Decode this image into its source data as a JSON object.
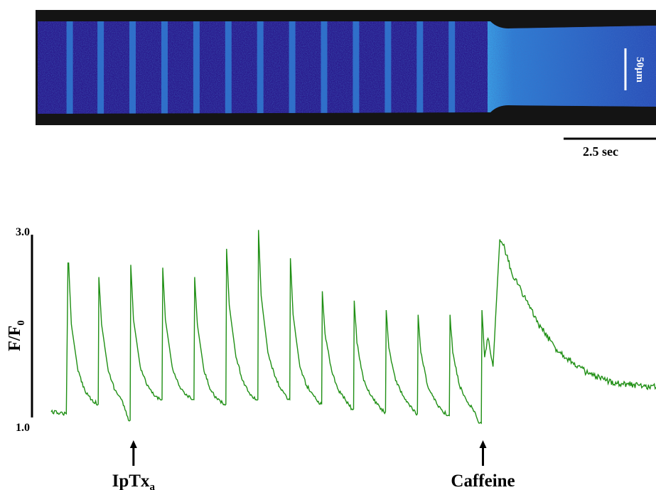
{
  "figure": {
    "linescan": {
      "spatial_scale_label": "50μm",
      "time_scale_label": "2.5 sec",
      "colors": {
        "background": "#141414",
        "cell_base": "#2a1a8c",
        "cell_bright": "#2ab8e8"
      }
    },
    "trace": {
      "y_axis_label_main": "F/F",
      "y_axis_label_sub": "0",
      "y_tick_top": "3.0",
      "y_tick_bottom": "1.0",
      "color": "#1f8f14"
    },
    "annotations": [
      {
        "main": "IpTx",
        "sub": "a",
        "time": 2.45
      },
      {
        "main": "Caffeine",
        "sub": "",
        "time": 12.85
      }
    ]
  },
  "chart_data": {
    "type": "line",
    "title": "",
    "xlabel": "",
    "ylabel": "F/F0",
    "ylim": [
      1.0,
      3.0
    ],
    "xlim": [
      0,
      18
    ],
    "time_scale_bar_seconds": 2.5,
    "series": [
      {
        "name": "",
        "color": "#1f8f14",
        "x": [
          0.0,
          0.45,
          0.5,
          0.52,
          0.6,
          0.8,
          1.0,
          1.2,
          1.4,
          1.4,
          1.42,
          1.5,
          1.7,
          1.9,
          2.1,
          2.3,
          2.35,
          2.37,
          2.45,
          2.65,
          2.85,
          3.05,
          3.25,
          3.3,
          3.32,
          3.4,
          3.6,
          3.8,
          4.0,
          4.2,
          4.25,
          4.27,
          4.35,
          4.55,
          4.75,
          4.95,
          5.15,
          5.2,
          5.22,
          5.3,
          5.5,
          5.7,
          5.9,
          6.1,
          6.15,
          6.17,
          6.25,
          6.45,
          6.65,
          6.85,
          7.05,
          7.1,
          7.12,
          7.2,
          7.4,
          7.6,
          7.8,
          8.0,
          8.05,
          8.07,
          8.15,
          8.35,
          8.55,
          8.75,
          8.95,
          9.0,
          9.02,
          9.1,
          9.3,
          9.5,
          9.7,
          9.9,
          9.95,
          9.97,
          10.05,
          10.25,
          10.45,
          10.65,
          10.85,
          10.9,
          10.92,
          11.0,
          11.2,
          11.4,
          11.6,
          11.8,
          11.85,
          11.87,
          11.95,
          12.15,
          12.35,
          12.55,
          12.75,
          12.8,
          12.82,
          12.9,
          13.0,
          13.15,
          13.35,
          13.5,
          13.7,
          14.0,
          14.5,
          15.0,
          15.5,
          16.0,
          16.5,
          17.0,
          17.5,
          18.0
        ],
        "y": [
          1.12,
          1.1,
          2.7,
          2.7,
          2.05,
          1.55,
          1.35,
          1.25,
          1.2,
          1.2,
          2.55,
          2.05,
          1.55,
          1.35,
          1.25,
          1.03,
          1.03,
          2.68,
          2.1,
          1.6,
          1.4,
          1.3,
          1.25,
          1.25,
          2.65,
          2.1,
          1.6,
          1.4,
          1.3,
          1.25,
          1.25,
          2.55,
          2.05,
          1.55,
          1.35,
          1.25,
          1.2,
          1.2,
          2.85,
          2.25,
          1.7,
          1.45,
          1.32,
          1.25,
          1.25,
          3.05,
          2.35,
          1.75,
          1.5,
          1.35,
          1.25,
          1.25,
          2.75,
          2.15,
          1.6,
          1.4,
          1.3,
          1.2,
          1.2,
          2.4,
          1.95,
          1.55,
          1.35,
          1.25,
          1.15,
          1.15,
          2.3,
          1.85,
          1.45,
          1.3,
          1.2,
          1.12,
          1.12,
          2.2,
          1.8,
          1.45,
          1.3,
          1.2,
          1.1,
          1.1,
          2.15,
          1.75,
          1.4,
          1.25,
          1.15,
          1.08,
          1.08,
          2.15,
          1.75,
          1.4,
          1.25,
          1.15,
          1.0,
          1.0,
          2.2,
          1.7,
          1.9,
          1.6,
          2.95,
          2.85,
          2.6,
          2.4,
          2.05,
          1.8,
          1.65,
          1.52,
          1.45,
          1.42,
          1.4,
          1.38
        ]
      }
    ]
  }
}
